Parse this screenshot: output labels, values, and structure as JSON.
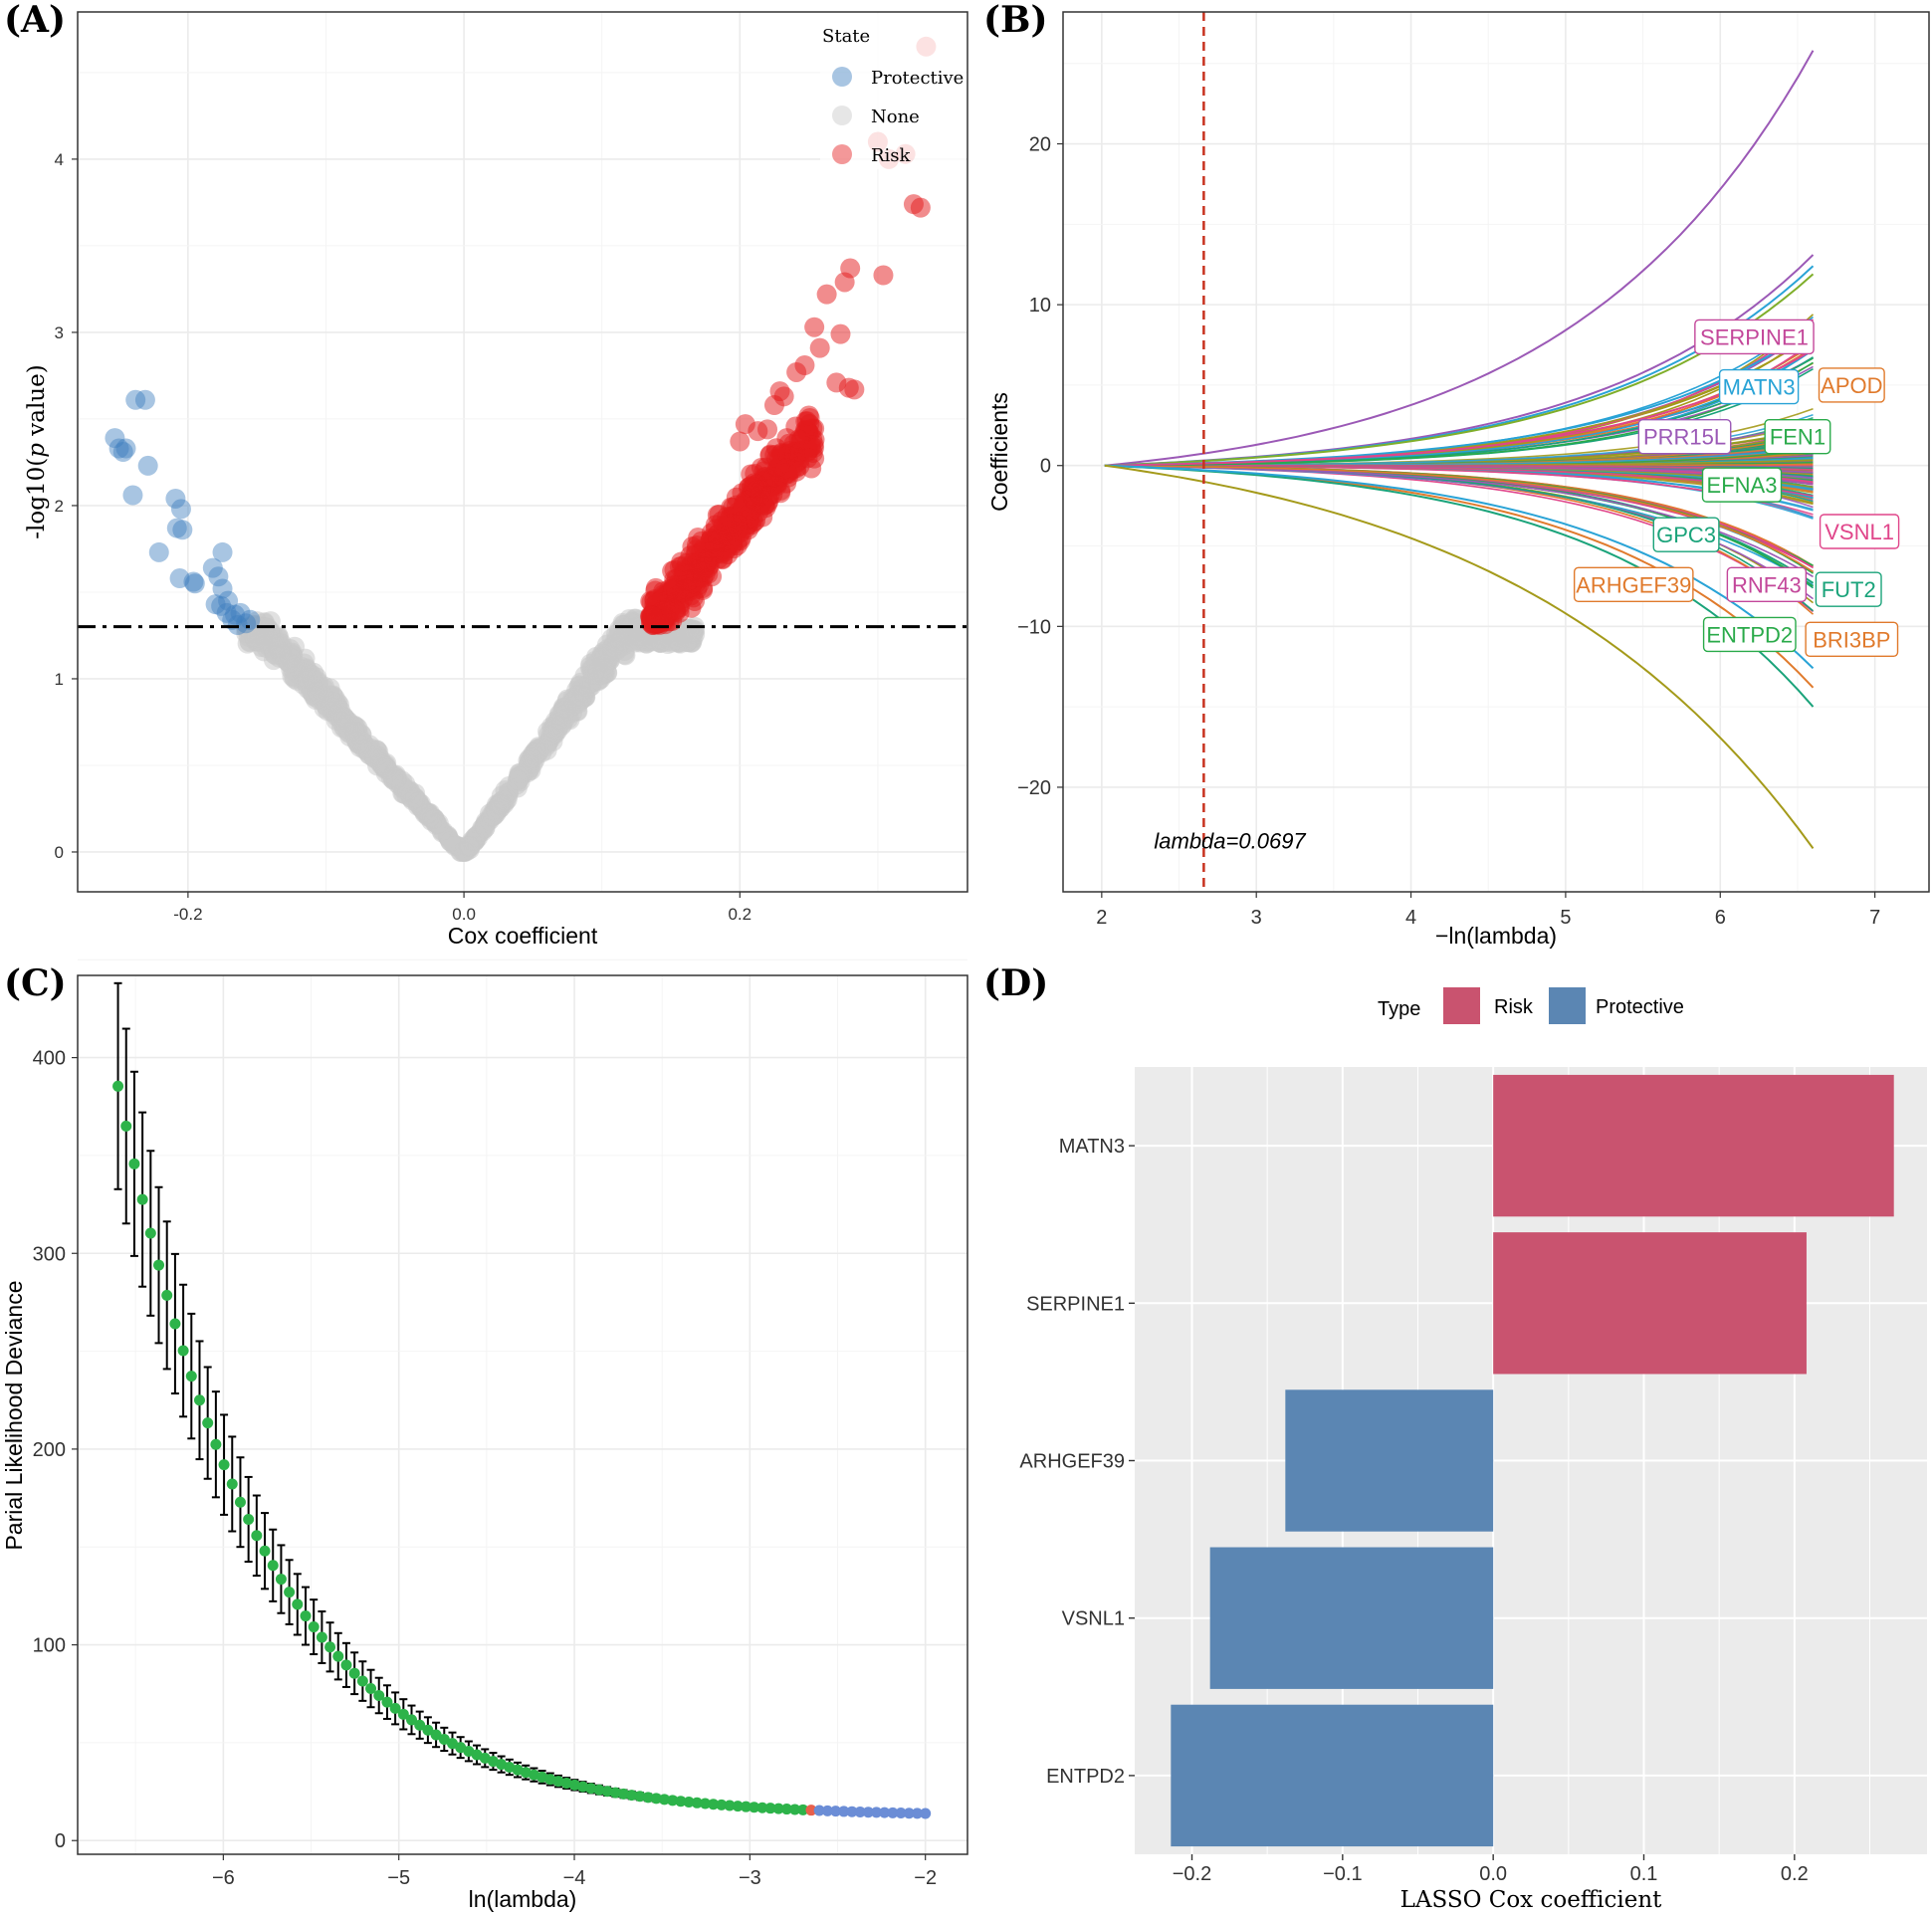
{
  "panels": {
    "A": {
      "letter": "(A)"
    },
    "B": {
      "letter": "(B)"
    },
    "C": {
      "letter": "(C)"
    },
    "D": {
      "letter": "(D)"
    }
  },
  "colors": {
    "protective": "#3f7fbf",
    "none": "#c8c8c8",
    "risk": "#e41a1c",
    "bar_risk": "#c9536f",
    "bar_protective": "#5b86b3",
    "cv_green": "#2db34a",
    "cv_blue": "#6b8dd6",
    "cv_red": "#e8604c",
    "lambda_line": "#c8321f"
  },
  "chart_data": [
    {
      "id": "A",
      "type": "scatter",
      "title": "",
      "xlabel": "Cox coefficient",
      "ylabel": "-log10(p value)",
      "ylabel_prefix": "-log10(",
      "ylabel_italic": "p",
      "ylabel_suffix": " value)",
      "xlim": [
        -0.28,
        0.365
      ],
      "ylim": [
        -0.23,
        4.85
      ],
      "xticks": [
        -0.2,
        0.0,
        0.2
      ],
      "xtick_labels": [
        "-0.2",
        "0.0",
        "0.2"
      ],
      "yticks": [
        0,
        1,
        2,
        3,
        4
      ],
      "ytick_labels": [
        "0",
        "1",
        "2",
        "3",
        "4"
      ],
      "threshold_y": 1.301,
      "legend": {
        "title": "State",
        "entries": [
          "Protective",
          "None",
          "Risk"
        ],
        "position": "top-right"
      },
      "protective_points": [
        [
          -0.253,
          2.39
        ],
        [
          -0.25,
          2.33
        ],
        [
          -0.247,
          2.31
        ],
        [
          -0.245,
          2.33
        ],
        [
          -0.238,
          2.61
        ],
        [
          -0.231,
          2.61
        ],
        [
          -0.229,
          2.23
        ],
        [
          -0.24,
          2.06
        ],
        [
          -0.209,
          2.04
        ],
        [
          -0.205,
          1.98
        ],
        [
          -0.204,
          1.86
        ],
        [
          -0.208,
          1.87
        ],
        [
          -0.221,
          1.73
        ],
        [
          -0.206,
          1.58
        ],
        [
          -0.196,
          1.56
        ],
        [
          -0.195,
          1.55
        ],
        [
          -0.182,
          1.64
        ],
        [
          -0.175,
          1.73
        ],
        [
          -0.178,
          1.59
        ],
        [
          -0.175,
          1.52
        ],
        [
          -0.18,
          1.43
        ],
        [
          -0.176,
          1.42
        ],
        [
          -0.171,
          1.45
        ],
        [
          -0.172,
          1.38
        ],
        [
          -0.166,
          1.37
        ],
        [
          -0.168,
          1.34
        ],
        [
          -0.162,
          1.38
        ],
        [
          -0.158,
          1.32
        ],
        [
          -0.155,
          1.34
        ],
        [
          -0.164,
          1.31
        ]
      ],
      "risk_points_extra": [
        [
          0.335,
          4.65
        ],
        [
          0.3,
          4.1
        ],
        [
          0.32,
          4.03
        ],
        [
          0.308,
          4.0
        ],
        [
          0.326,
          3.74
        ],
        [
          0.331,
          3.72
        ],
        [
          0.28,
          3.37
        ],
        [
          0.276,
          3.29
        ],
        [
          0.263,
          3.22
        ],
        [
          0.304,
          3.33
        ],
        [
          0.254,
          3.03
        ],
        [
          0.273,
          2.99
        ],
        [
          0.258,
          2.91
        ],
        [
          0.247,
          2.81
        ],
        [
          0.241,
          2.77
        ],
        [
          0.279,
          2.68
        ],
        [
          0.27,
          2.71
        ],
        [
          0.283,
          2.67
        ],
        [
          0.232,
          2.63
        ],
        [
          0.229,
          2.66
        ],
        [
          0.225,
          2.58
        ],
        [
          0.25,
          2.52
        ],
        [
          0.204,
          2.47
        ],
        [
          0.22,
          2.44
        ],
        [
          0.234,
          2.39
        ],
        [
          0.2,
          2.37
        ],
        [
          0.213,
          2.43
        ]
      ],
      "band_params": {
        "slope_pos": 11.0,
        "slope_neg": 8.9,
        "spread": 0.12,
        "x_max_risk": 0.255,
        "x_min_neg": -0.168
      }
    },
    {
      "id": "B",
      "type": "line",
      "title": "",
      "xlabel": "−ln(lambda)",
      "ylabel": "Coefficients",
      "xlim": [
        1.75,
        7.35
      ],
      "ylim": [
        -26.5,
        28.2
      ],
      "xticks": [
        2,
        3,
        4,
        5,
        6,
        7
      ],
      "xtick_labels": [
        "2",
        "3",
        "4",
        "5",
        "6",
        "7"
      ],
      "yticks": [
        -20,
        -10,
        0,
        10,
        20
      ],
      "ytick_labels": [
        "−20",
        "−10",
        "0",
        "10",
        "20"
      ],
      "lambda_line_x": 2.66,
      "annotation": "lambda=0.0697",
      "path_x_start": 2.02,
      "path_x_end": 6.6,
      "extreme_paths": [
        {
          "end": 25.8,
          "color": "#9b59b6",
          "k": 2.9
        },
        {
          "end": 13.1,
          "color": "#9b59b6",
          "k": 3.2
        },
        {
          "end": 12.4,
          "color": "#29a3d6",
          "k": 3.2
        },
        {
          "end": 11.9,
          "color": "#7fae2a",
          "k": 3.2
        },
        {
          "end": 8.6,
          "color": "#29a3d6",
          "k": 3.6
        },
        {
          "end": 7.2,
          "color": "#e0458a",
          "k": 3.6
        },
        {
          "end": -13.8,
          "color": "#e07a2c",
          "k": 3.3
        },
        {
          "end": -15.0,
          "color": "#1aa37a",
          "k": 3.3
        },
        {
          "end": -12.6,
          "color": "#29a3d6",
          "k": 3.3
        },
        {
          "end": -23.8,
          "color": "#a49a1a",
          "k": 2.3
        }
      ],
      "path_palette": [
        "#e0458a",
        "#29a3d6",
        "#2aaa4a",
        "#e07a2c",
        "#9b59b6",
        "#a49a1a",
        "#1aa37a"
      ],
      "gene_labels": [
        {
          "text": "SERPINE1",
          "x": 6.22,
          "y": 8.0,
          "color": "#c3479a"
        },
        {
          "text": "MATN3",
          "x": 6.25,
          "y": 4.9,
          "color": "#29a3d6"
        },
        {
          "text": "APOD",
          "x": 6.85,
          "y": 5.0,
          "color": "#e07a2c"
        },
        {
          "text": "PRR15L",
          "x": 5.77,
          "y": 1.8,
          "color": "#9b59b6"
        },
        {
          "text": "FEN1",
          "x": 6.5,
          "y": 1.8,
          "color": "#2aaa4a"
        },
        {
          "text": "EFNA3",
          "x": 6.14,
          "y": -1.2,
          "color": "#2aaa4a"
        },
        {
          "text": "GPC3",
          "x": 5.78,
          "y": -4.3,
          "color": "#1aa37a"
        },
        {
          "text": "VSNL1",
          "x": 6.9,
          "y": -4.1,
          "color": "#e0458a"
        },
        {
          "text": "ARHGEF39",
          "x": 5.44,
          "y": -7.4,
          "color": "#e07a2c"
        },
        {
          "text": "RNF43",
          "x": 6.3,
          "y": -7.4,
          "color": "#c3479a"
        },
        {
          "text": "FUT2",
          "x": 6.83,
          "y": -7.7,
          "color": "#1aa37a"
        },
        {
          "text": "ENTPD2",
          "x": 6.19,
          "y": -10.5,
          "color": "#2aaa4a"
        },
        {
          "text": "BRI3BP",
          "x": 6.85,
          "y": -10.8,
          "color": "#e07a2c"
        }
      ]
    },
    {
      "id": "C",
      "type": "scatter",
      "title": "",
      "xlabel": "ln(lambda)",
      "ylabel": "Parial Likelihood Deviance",
      "xlim": [
        -6.83,
        -1.76
      ],
      "ylim": [
        -7,
        442
      ],
      "xticks": [
        -6,
        -5,
        -4,
        -3,
        -2
      ],
      "xtick_labels": [
        "−6",
        "−5",
        "−4",
        "−3",
        "−2"
      ],
      "yticks": [
        0,
        100,
        200,
        300,
        400
      ],
      "ytick_labels": [
        "0",
        "100",
        "200",
        "300",
        "400"
      ],
      "x_start": -6.6,
      "x_end": -2.0,
      "n_points": 100,
      "min_lambda_x": -2.66,
      "curve": {
        "floor": 12.4,
        "amp": 373,
        "decay": 1.21,
        "err_frac": 0.14
      }
    },
    {
      "id": "D",
      "type": "bar",
      "orientation": "horizontal",
      "title": "",
      "xlabel": "LASSO Cox coefficient",
      "ylabel": "",
      "xlim": [
        -0.238,
        0.288
      ],
      "xticks": [
        -0.2,
        -0.1,
        0.0,
        0.1,
        0.2
      ],
      "xtick_labels": [
        "−0.2",
        "−0.1",
        "0.0",
        "0.1",
        "0.2"
      ],
      "categories": [
        "MATN3",
        "SERPINE1",
        "ARHGEF39",
        "VSNL1",
        "ENTPD2"
      ],
      "values": [
        0.266,
        0.208,
        -0.138,
        -0.188,
        -0.214
      ],
      "types": [
        "Risk",
        "Risk",
        "Protective",
        "Protective",
        "Protective"
      ],
      "legend": {
        "title": "Type",
        "entries": [
          "Risk",
          "Protective"
        ],
        "position": "top"
      }
    }
  ]
}
